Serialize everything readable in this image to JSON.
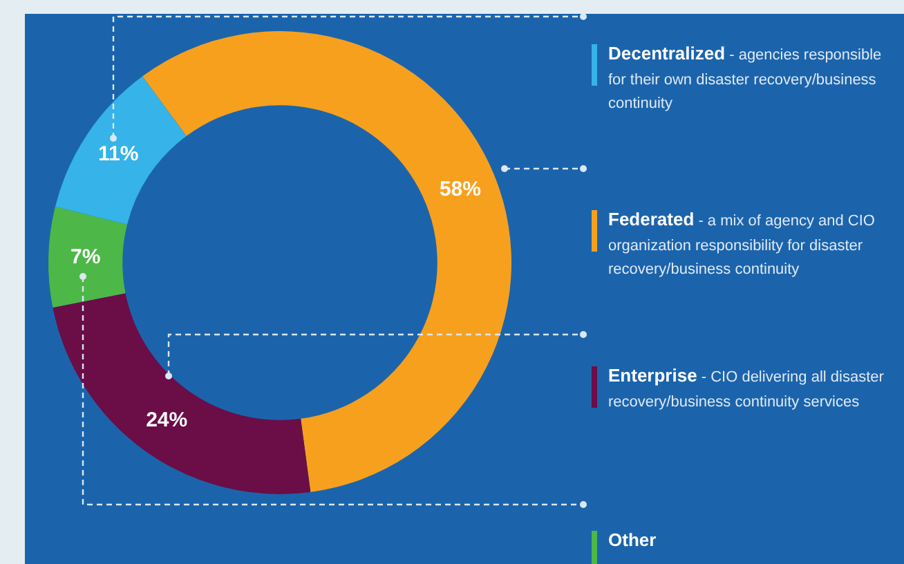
{
  "chart_data": {
    "type": "donut",
    "categories": [
      "Decentralized",
      "Federated",
      "Enterprise",
      "Other"
    ],
    "values": [
      11,
      58,
      24,
      7
    ],
    "colors": [
      "#36b3e8",
      "#f7a01e",
      "#6b0d47",
      "#4db848"
    ],
    "value_labels": [
      "11%",
      "58%",
      "24%",
      "7%"
    ],
    "annotations": [
      "- agencies responsible for their own disaster recovery/business continuity",
      "- a mix of agency and CIO organization responsibility for disaster recovery/business continuity",
      "- CIO delivering all disaster recovery/business continuity services"
    ],
    "legend": "right"
  }
}
